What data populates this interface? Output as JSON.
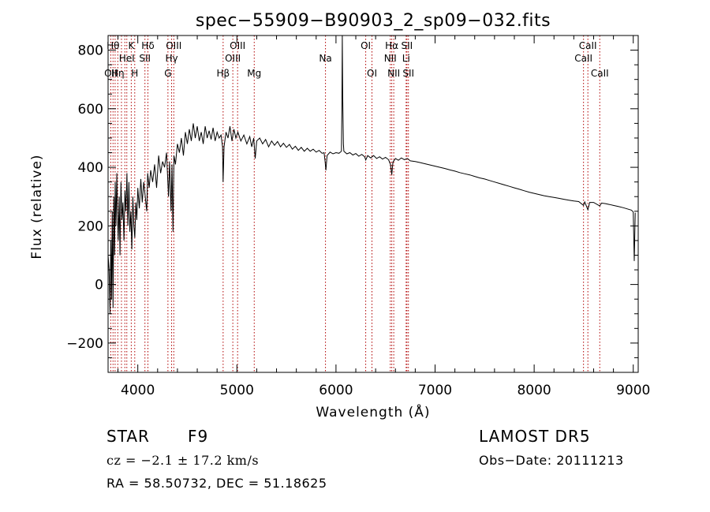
{
  "chart_data": {
    "type": "line",
    "title": "spec−55909−B90903_2_sp09−032.fits",
    "xlabel": "Wavelength (Å)",
    "ylabel": "Flux (relative)",
    "xlim": [
      3700,
      9050
    ],
    "ylim": [
      -300,
      850
    ],
    "xticks": [
      {
        "v": 4000,
        "label": "4000"
      },
      {
        "v": 5000,
        "label": "5000"
      },
      {
        "v": 6000,
        "label": "6000"
      },
      {
        "v": 7000,
        "label": "7000"
      },
      {
        "v": 8000,
        "label": "8000"
      },
      {
        "v": 9000,
        "label": "9000"
      }
    ],
    "yticks": [
      {
        "v": -200,
        "label": "−200"
      },
      {
        "v": 0,
        "label": "0"
      },
      {
        "v": 200,
        "label": "200"
      },
      {
        "v": 400,
        "label": "400"
      },
      {
        "v": 600,
        "label": "600"
      },
      {
        "v": 800,
        "label": "800"
      }
    ],
    "lines": [
      {
        "w": 3727,
        "label": "OII",
        "row": 3
      },
      {
        "w": 3750,
        "label": "Hθ",
        "row": 1
      },
      {
        "w": 3771,
        "label": "",
        "row": 0
      },
      {
        "w": 3798,
        "label": "Hη",
        "row": 3
      },
      {
        "w": 3835,
        "label": "",
        "row": 0
      },
      {
        "w": 3869,
        "label": "",
        "row": 0
      },
      {
        "w": 3889,
        "label": "HeI",
        "row": 2
      },
      {
        "w": 3934,
        "label": "K",
        "row": 1
      },
      {
        "w": 3969,
        "label": "H",
        "row": 3
      },
      {
        "w": 4072,
        "label": "SII",
        "row": 2
      },
      {
        "w": 4102,
        "label": "Hδ",
        "row": 1
      },
      {
        "w": 4304,
        "label": "G",
        "row": 3
      },
      {
        "w": 4341,
        "label": "Hγ",
        "row": 2
      },
      {
        "w": 4363,
        "label": "OIII",
        "row": 1
      },
      {
        "w": 4861,
        "label": "Hβ",
        "row": 3
      },
      {
        "w": 4959,
        "label": "OIII",
        "row": 2
      },
      {
        "w": 5007,
        "label": "OIII",
        "row": 1
      },
      {
        "w": 5175,
        "label": "Mg",
        "row": 3
      },
      {
        "w": 5894,
        "label": "Na",
        "row": 2
      },
      {
        "w": 6300,
        "label": "OI",
        "row": 1
      },
      {
        "w": 6363,
        "label": "OI",
        "row": 3
      },
      {
        "w": 6548,
        "label": "NII",
        "row": 2
      },
      {
        "w": 6563,
        "label": "Hα",
        "row": 1
      },
      {
        "w": 6583,
        "label": "NII",
        "row": 3
      },
      {
        "w": 6708,
        "label": "Li",
        "row": 2
      },
      {
        "w": 6716,
        "label": "SII",
        "row": 1
      },
      {
        "w": 6731,
        "label": "SII",
        "row": 3
      },
      {
        "w": 8498,
        "label": "CaII",
        "row": 2
      },
      {
        "w": 8542,
        "label": "CaII",
        "row": 1
      },
      {
        "w": 8662,
        "label": "CaII",
        "row": 3
      }
    ],
    "spectrum": [
      [
        3700,
        100
      ],
      [
        3710,
        50
      ],
      [
        3720,
        -100
      ],
      [
        3728,
        150
      ],
      [
        3735,
        -50
      ],
      [
        3742,
        250
      ],
      [
        3750,
        -80
      ],
      [
        3758,
        300
      ],
      [
        3765,
        100
      ],
      [
        3772,
        350
      ],
      [
        3780,
        200
      ],
      [
        3788,
        380
      ],
      [
        3795,
        250
      ],
      [
        3803,
        150
      ],
      [
        3812,
        300
      ],
      [
        3820,
        100
      ],
      [
        3830,
        350
      ],
      [
        3840,
        220
      ],
      [
        3850,
        280
      ],
      [
        3860,
        150
      ],
      [
        3870,
        320
      ],
      [
        3880,
        250
      ],
      [
        3890,
        380
      ],
      [
        3900,
        200
      ],
      [
        3910,
        350
      ],
      [
        3920,
        180
      ],
      [
        3930,
        250
      ],
      [
        3940,
        120
      ],
      [
        3950,
        300
      ],
      [
        3960,
        200
      ],
      [
        3970,
        160
      ],
      [
        3980,
        280
      ],
      [
        3990,
        220
      ],
      [
        4000,
        330
      ],
      [
        4015,
        260
      ],
      [
        4030,
        360
      ],
      [
        4045,
        280
      ],
      [
        4060,
        350
      ],
      [
        4075,
        300
      ],
      [
        4090,
        250
      ],
      [
        4100,
        380
      ],
      [
        4115,
        330
      ],
      [
        4130,
        390
      ],
      [
        4150,
        350
      ],
      [
        4170,
        410
      ],
      [
        4190,
        330
      ],
      [
        4210,
        440
      ],
      [
        4230,
        380
      ],
      [
        4250,
        420
      ],
      [
        4270,
        400
      ],
      [
        4290,
        450
      ],
      [
        4310,
        300
      ],
      [
        4320,
        420
      ],
      [
        4335,
        250
      ],
      [
        4345,
        410
      ],
      [
        4355,
        180
      ],
      [
        4365,
        440
      ],
      [
        4380,
        410
      ],
      [
        4400,
        480
      ],
      [
        4420,
        450
      ],
      [
        4440,
        500
      ],
      [
        4460,
        440
      ],
      [
        4480,
        520
      ],
      [
        4500,
        480
      ],
      [
        4520,
        530
      ],
      [
        4540,
        490
      ],
      [
        4560,
        550
      ],
      [
        4580,
        500
      ],
      [
        4600,
        540
      ],
      [
        4620,
        490
      ],
      [
        4640,
        520
      ],
      [
        4660,
        480
      ],
      [
        4680,
        540
      ],
      [
        4700,
        500
      ],
      [
        4720,
        525
      ],
      [
        4740,
        495
      ],
      [
        4760,
        535
      ],
      [
        4780,
        490
      ],
      [
        4800,
        520
      ],
      [
        4820,
        500
      ],
      [
        4840,
        510
      ],
      [
        4855,
        470
      ],
      [
        4861,
        350
      ],
      [
        4870,
        470
      ],
      [
        4890,
        520
      ],
      [
        4910,
        500
      ],
      [
        4930,
        540
      ],
      [
        4950,
        490
      ],
      [
        4970,
        530
      ],
      [
        4990,
        500
      ],
      [
        5010,
        520
      ],
      [
        5040,
        490
      ],
      [
        5070,
        510
      ],
      [
        5100,
        480
      ],
      [
        5130,
        505
      ],
      [
        5150,
        470
      ],
      [
        5170,
        500
      ],
      [
        5185,
        430
      ],
      [
        5200,
        490
      ],
      [
        5230,
        500
      ],
      [
        5260,
        480
      ],
      [
        5290,
        495
      ],
      [
        5320,
        470
      ],
      [
        5350,
        490
      ],
      [
        5380,
        475
      ],
      [
        5410,
        488
      ],
      [
        5440,
        470
      ],
      [
        5470,
        482
      ],
      [
        5500,
        468
      ],
      [
        5530,
        478
      ],
      [
        5560,
        462
      ],
      [
        5590,
        472
      ],
      [
        5620,
        458
      ],
      [
        5650,
        468
      ],
      [
        5680,
        455
      ],
      [
        5710,
        465
      ],
      [
        5740,
        455
      ],
      [
        5770,
        462
      ],
      [
        5800,
        452
      ],
      [
        5830,
        458
      ],
      [
        5860,
        448
      ],
      [
        5880,
        450
      ],
      [
        5890,
        420
      ],
      [
        5898,
        390
      ],
      [
        5910,
        440
      ],
      [
        5940,
        452
      ],
      [
        5970,
        446
      ],
      [
        6000,
        450
      ],
      [
        6030,
        448
      ],
      [
        6055,
        455
      ],
      [
        6060,
        600
      ],
      [
        6064,
        850
      ],
      [
        6068,
        650
      ],
      [
        6075,
        480
      ],
      [
        6080,
        455
      ],
      [
        6110,
        446
      ],
      [
        6140,
        450
      ],
      [
        6170,
        442
      ],
      [
        6200,
        447
      ],
      [
        6230,
        438
      ],
      [
        6260,
        444
      ],
      [
        6290,
        436
      ],
      [
        6300,
        425
      ],
      [
        6320,
        440
      ],
      [
        6350,
        432
      ],
      [
        6380,
        440
      ],
      [
        6410,
        430
      ],
      [
        6440,
        436
      ],
      [
        6470,
        428
      ],
      [
        6500,
        434
      ],
      [
        6530,
        426
      ],
      [
        6550,
        410
      ],
      [
        6563,
        375
      ],
      [
        6575,
        418
      ],
      [
        6600,
        430
      ],
      [
        6630,
        424
      ],
      [
        6660,
        432
      ],
      [
        6690,
        426
      ],
      [
        6720,
        430
      ],
      [
        6750,
        422
      ],
      [
        6800,
        420
      ],
      [
        6850,
        416
      ],
      [
        6900,
        412
      ],
      [
        6950,
        408
      ],
      [
        7000,
        404
      ],
      [
        7050,
        400
      ],
      [
        7100,
        396
      ],
      [
        7150,
        391
      ],
      [
        7200,
        387
      ],
      [
        7250,
        382
      ],
      [
        7300,
        378
      ],
      [
        7350,
        374
      ],
      [
        7400,
        369
      ],
      [
        7450,
        364
      ],
      [
        7500,
        360
      ],
      [
        7550,
        355
      ],
      [
        7600,
        350
      ],
      [
        7650,
        345
      ],
      [
        7700,
        340
      ],
      [
        7750,
        335
      ],
      [
        7800,
        330
      ],
      [
        7850,
        325
      ],
      [
        7900,
        320
      ],
      [
        7950,
        315
      ],
      [
        8000,
        311
      ],
      [
        8050,
        307
      ],
      [
        8100,
        303
      ],
      [
        8150,
        300
      ],
      [
        8200,
        297
      ],
      [
        8250,
        294
      ],
      [
        8300,
        291
      ],
      [
        8350,
        288
      ],
      [
        8400,
        285
      ],
      [
        8450,
        283
      ],
      [
        8498,
        270
      ],
      [
        8510,
        282
      ],
      [
        8542,
        255
      ],
      [
        8560,
        280
      ],
      [
        8600,
        280
      ],
      [
        8662,
        268
      ],
      [
        8680,
        278
      ],
      [
        8720,
        276
      ],
      [
        8760,
        273
      ],
      [
        8800,
        270
      ],
      [
        8850,
        266
      ],
      [
        8900,
        262
      ],
      [
        8940,
        258
      ],
      [
        8980,
        254
      ],
      [
        9000,
        248
      ],
      [
        9010,
        80
      ],
      [
        9020,
        245
      ]
    ]
  },
  "info": {
    "class": "STAR",
    "subclass": "F9",
    "survey": "LAMOST DR5",
    "cz": "cz = −2.1 ± 17.2 km/s",
    "obsdate": "Obs−Date: 20111213",
    "radec": "RA =  58.50732, DEC =  51.18625"
  }
}
